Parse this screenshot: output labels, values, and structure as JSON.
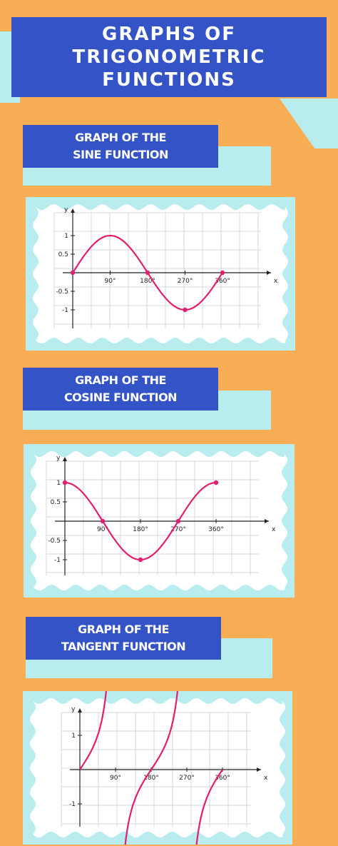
{
  "page": {
    "title": "GRAPHS OF TRIGONOMETRIC FUNCTIONS",
    "colors": {
      "background": "#f9ad55",
      "accent": "#3353c7",
      "panel": "#b8ecef",
      "curve": "#e41e6e"
    }
  },
  "sections": [
    {
      "heading_line1": "GRAPH OF THE",
      "heading_line2": "SINE FUNCTION"
    },
    {
      "heading_line1": "GRAPH OF THE",
      "heading_line2": "COSINE FUNCTION"
    },
    {
      "heading_line1": "GRAPH OF THE",
      "heading_line2": "TANGENT FUNCTION"
    }
  ],
  "chart_data": [
    {
      "type": "line",
      "function": "sin",
      "xlabel": "x",
      "ylabel": "y",
      "x_ticks": [
        "90°",
        "180°",
        "270°",
        "360°"
      ],
      "y_ticks": [
        "1",
        "0.5",
        "-0.5",
        "-1"
      ],
      "xlim": [
        0,
        360
      ],
      "ylim": [
        -1,
        1
      ],
      "points": [
        [
          0,
          0
        ],
        [
          90,
          1
        ],
        [
          180,
          0
        ],
        [
          270,
          -1
        ],
        [
          360,
          0
        ]
      ],
      "marked_points": [
        [
          0,
          0
        ],
        [
          180,
          0
        ],
        [
          270,
          -1
        ],
        [
          360,
          0
        ]
      ]
    },
    {
      "type": "line",
      "function": "cos",
      "xlabel": "x",
      "ylabel": "y",
      "x_ticks": [
        "90°",
        "180°",
        "270°",
        "360°"
      ],
      "y_ticks": [
        "1",
        "0.5",
        "-0.5",
        "-1"
      ],
      "xlim": [
        0,
        360
      ],
      "ylim": [
        -1,
        1
      ],
      "points": [
        [
          0,
          1
        ],
        [
          90,
          0
        ],
        [
          180,
          -1
        ],
        [
          270,
          0
        ],
        [
          360,
          1
        ]
      ],
      "marked_points": [
        [
          0,
          1
        ],
        [
          90,
          0
        ],
        [
          180,
          -1
        ],
        [
          270,
          0
        ],
        [
          360,
          1
        ]
      ]
    },
    {
      "type": "line",
      "function": "tan",
      "xlabel": "x",
      "ylabel": "y",
      "x_ticks": [
        "90°",
        "180°",
        "270°",
        "360°"
      ],
      "y_ticks": [
        "1",
        "-1"
      ],
      "xlim": [
        0,
        360
      ],
      "ylim": [
        -1,
        1
      ],
      "asymptotes": [
        90,
        270
      ]
    }
  ]
}
